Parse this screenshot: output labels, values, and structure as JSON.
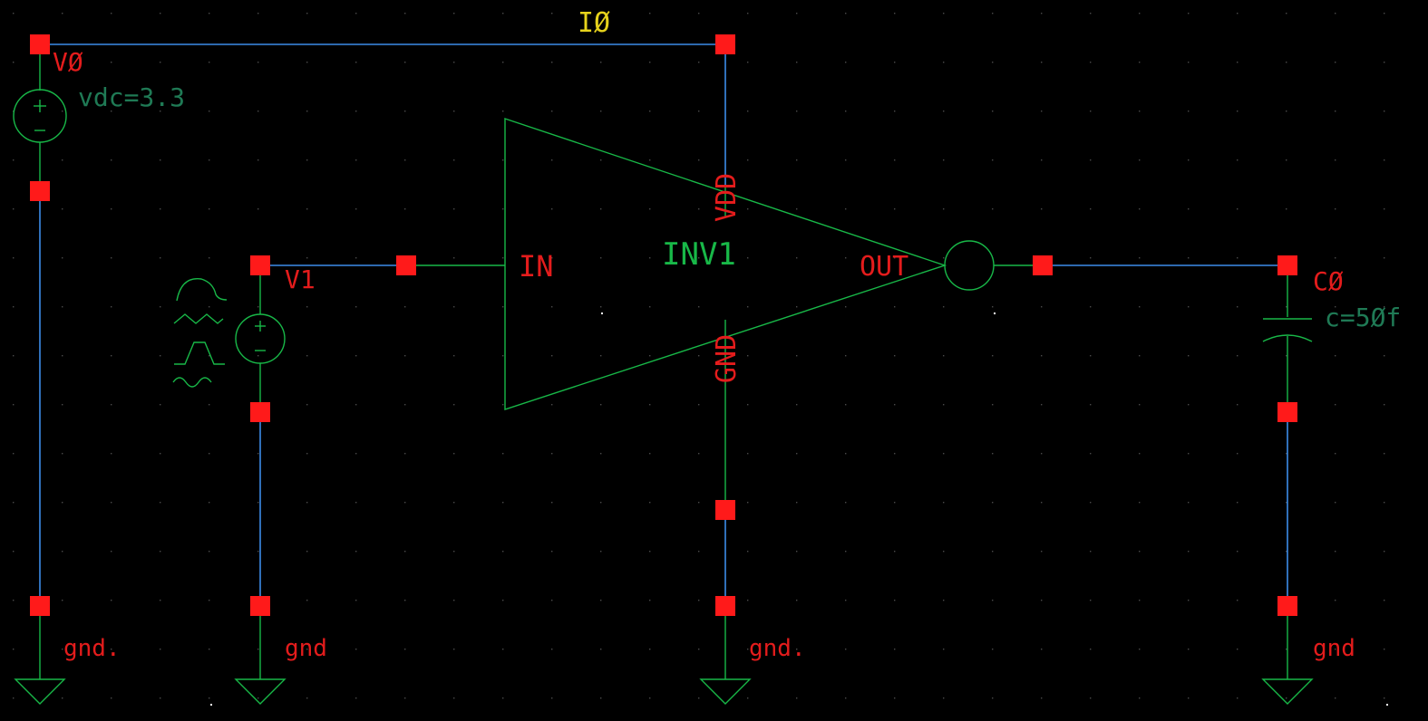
{
  "instances": {
    "inverter": {
      "name": "INV1",
      "pin_in": "IN",
      "pin_out": "OUT",
      "pin_vdd": "VDD",
      "pin_gnd": "GND"
    },
    "vdc_source": {
      "name": "VØ",
      "param": "vdc=3.3"
    },
    "pulse_source": {
      "name": "V1"
    },
    "capacitor": {
      "name": "CØ",
      "param": "c=5Øf"
    }
  },
  "nets": {
    "supply_net": "IØ"
  },
  "grounds": {
    "g1": "gnd.",
    "g2": "gnd",
    "g3": "gnd.",
    "g4": "gnd"
  },
  "colors": {
    "background": "#000000",
    "wire": "#3c8ce8",
    "symbol": "#18b848",
    "label": "#e41c1c",
    "net_label": "#e6d21c",
    "pin": "#ff1a1a",
    "param": "#1f7a55",
    "grid_dot": "#4a4a4a"
  }
}
